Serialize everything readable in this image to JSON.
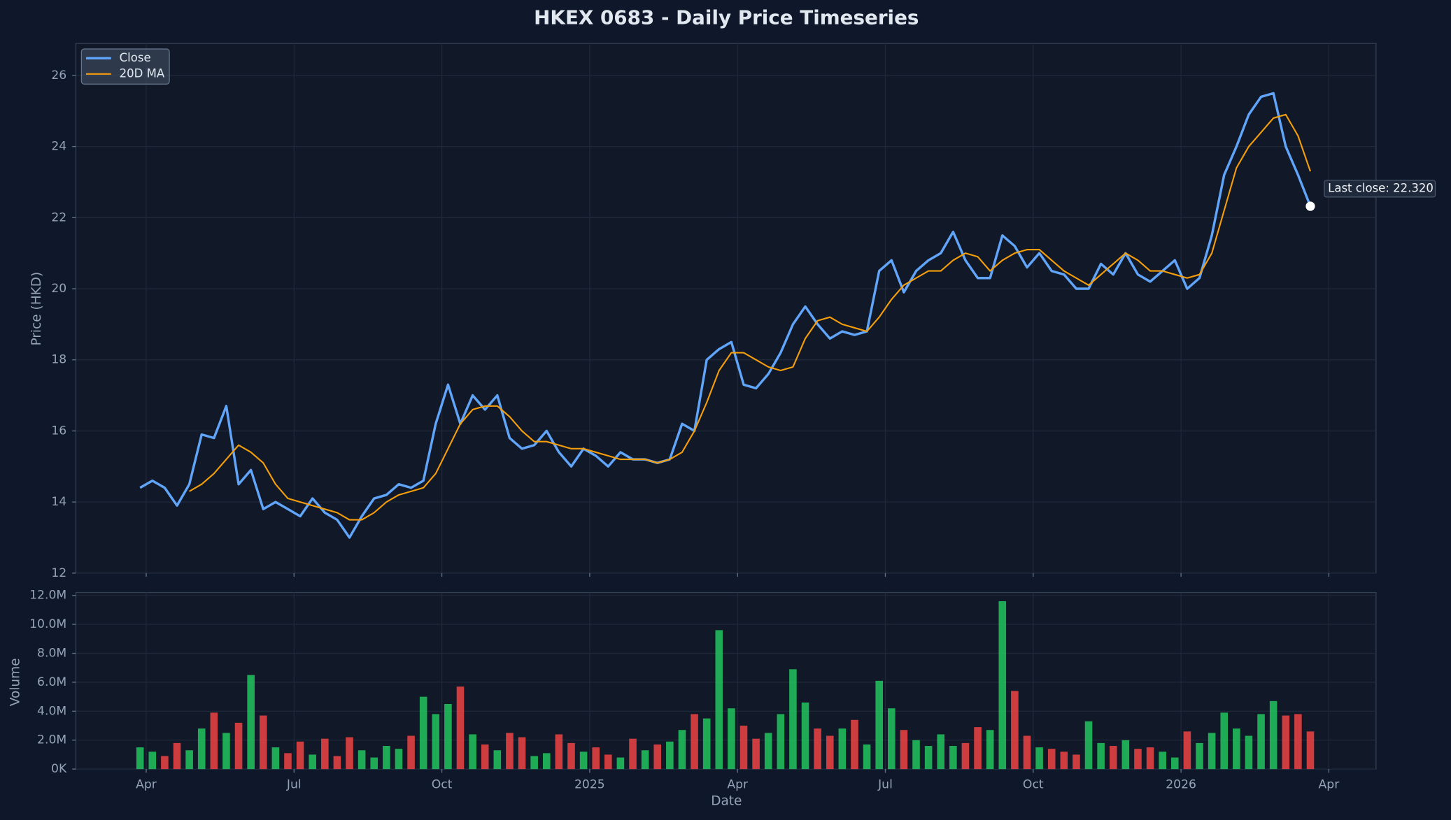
{
  "chart_data": [
    {
      "type": "line",
      "title": "HKEX 0683 - Daily Price Timeseries",
      "y_label": "Price (HKD)",
      "x": [
        "2024-03",
        "2024-03",
        "2024-03",
        "2024-03",
        "2024-04",
        "2024-04",
        "2024-04",
        "2024-04",
        "2024-05",
        "2024-05",
        "2024-05",
        "2024-05",
        "2024-06",
        "2024-06",
        "2024-06",
        "2024-06",
        "2024-07",
        "2024-07",
        "2024-07",
        "2024-07",
        "2024-08",
        "2024-08",
        "2024-08",
        "2024-08",
        "2024-09",
        "2024-09",
        "2024-09",
        "2024-09",
        "2024-10",
        "2024-10",
        "2024-10",
        "2024-10",
        "2024-11",
        "2024-11",
        "2024-11",
        "2024-11",
        "2024-12",
        "2024-12",
        "2024-12",
        "2024-12",
        "2025-01",
        "2025-01",
        "2025-01",
        "2025-01",
        "2025-02",
        "2025-02",
        "2025-02",
        "2025-02",
        "2025-03",
        "2025-03",
        "2025-03",
        "2025-03",
        "2025-04",
        "2025-04",
        "2025-04",
        "2025-04",
        "2025-05",
        "2025-05",
        "2025-05",
        "2025-05",
        "2025-06",
        "2025-06",
        "2025-06",
        "2025-06",
        "2025-07",
        "2025-07",
        "2025-07",
        "2025-07",
        "2025-08",
        "2025-08",
        "2025-08",
        "2025-08",
        "2025-09",
        "2025-09",
        "2025-09",
        "2025-09",
        "2025-10",
        "2025-10",
        "2025-10",
        "2025-10",
        "2025-11",
        "2025-11",
        "2025-11",
        "2025-11",
        "2025-12",
        "2025-12",
        "2025-12",
        "2025-12",
        "2026-01",
        "2026-01",
        "2026-01",
        "2026-01",
        "2026-02",
        "2026-02",
        "2026-02",
        "2026-02",
        "2026-03",
        "2026-03",
        "2026-03",
        "2026-03"
      ],
      "series": [
        {
          "name": "Close",
          "color": "#60a5fa",
          "values": [
            null,
            null,
            null,
            14.4,
            14.6,
            14.4,
            13.9,
            14.5,
            15.9,
            15.8,
            16.7,
            14.5,
            14.9,
            13.8,
            14.0,
            13.8,
            13.6,
            14.1,
            13.7,
            13.5,
            13.0,
            13.6,
            14.1,
            14.2,
            14.5,
            14.4,
            14.6,
            16.2,
            17.3,
            16.2,
            17.0,
            16.6,
            17.0,
            15.8,
            15.5,
            15.6,
            16.0,
            15.4,
            15.0,
            15.5,
            15.3,
            15.0,
            15.4,
            15.2,
            15.2,
            15.1,
            15.2,
            16.2,
            16.0,
            18.0,
            18.3,
            18.5,
            17.3,
            17.2,
            17.6,
            18.2,
            19.0,
            19.5,
            19.0,
            18.6,
            18.8,
            18.7,
            18.8,
            20.5,
            20.8,
            19.9,
            20.5,
            20.8,
            21.0,
            21.6,
            20.8,
            20.3,
            20.3,
            21.5,
            21.2,
            20.6,
            21.0,
            20.5,
            20.4,
            20.0,
            20.0,
            20.7,
            20.4,
            21.0,
            20.4,
            20.2,
            20.5,
            20.8,
            20.0,
            20.3,
            21.5,
            23.2,
            24.0,
            24.9,
            25.4,
            25.5,
            24.0,
            23.2,
            22.32,
            null
          ]
        },
        {
          "name": "20D MA",
          "color": "#f59e0b",
          "values": [
            null,
            null,
            null,
            null,
            null,
            null,
            null,
            14.3,
            14.5,
            14.8,
            15.2,
            15.6,
            15.4,
            15.1,
            14.5,
            14.1,
            14.0,
            13.9,
            13.8,
            13.7,
            13.5,
            13.5,
            13.7,
            14.0,
            14.2,
            14.3,
            14.4,
            14.8,
            15.5,
            16.2,
            16.6,
            16.7,
            16.7,
            16.4,
            16.0,
            15.7,
            15.7,
            15.6,
            15.5,
            15.5,
            15.4,
            15.3,
            15.2,
            15.2,
            15.2,
            15.1,
            15.2,
            15.4,
            16.0,
            16.8,
            17.7,
            18.2,
            18.2,
            18.0,
            17.8,
            17.7,
            17.8,
            18.6,
            19.1,
            19.2,
            19.0,
            18.9,
            18.8,
            19.2,
            19.7,
            20.1,
            20.3,
            20.5,
            20.5,
            20.8,
            21.0,
            20.9,
            20.5,
            20.8,
            21.0,
            21.1,
            21.1,
            20.8,
            20.5,
            20.3,
            20.1,
            20.4,
            20.7,
            21.0,
            20.8,
            20.5,
            20.5,
            20.4,
            20.3,
            20.4,
            21.0,
            22.2,
            23.4,
            24.0,
            24.4,
            24.8,
            24.9,
            24.3,
            23.3,
            null
          ]
        }
      ],
      "annotation": "Last close: 22.320",
      "ylim": [
        12,
        26.9
      ],
      "yticks": [
        12,
        14,
        16,
        18,
        20,
        22,
        24,
        26
      ],
      "grid": true,
      "legend": "upper left"
    },
    {
      "type": "bar",
      "y_label": "Volume",
      "x_label": "Date",
      "x": [
        "2024-03",
        "2024-03",
        "2024-03",
        "2024-03",
        "2024-04",
        "2024-04",
        "2024-04",
        "2024-04",
        "2024-05",
        "2024-05",
        "2024-05",
        "2024-05",
        "2024-06",
        "2024-06",
        "2024-06",
        "2024-06",
        "2024-07",
        "2024-07",
        "2024-07",
        "2024-07",
        "2024-08",
        "2024-08",
        "2024-08",
        "2024-08",
        "2024-09",
        "2024-09",
        "2024-09",
        "2024-09",
        "2024-10",
        "2024-10",
        "2024-10",
        "2024-10",
        "2024-11",
        "2024-11",
        "2024-11",
        "2024-11",
        "2024-12",
        "2024-12",
        "2024-12",
        "2024-12",
        "2025-01",
        "2025-01",
        "2025-01",
        "2025-01",
        "2025-02",
        "2025-02",
        "2025-02",
        "2025-02",
        "2025-03",
        "2025-03",
        "2025-03",
        "2025-03",
        "2025-04",
        "2025-04",
        "2025-04",
        "2025-04",
        "2025-05",
        "2025-05",
        "2025-05",
        "2025-05",
        "2025-06",
        "2025-06",
        "2025-06",
        "2025-06",
        "2025-07",
        "2025-07",
        "2025-07",
        "2025-07",
        "2025-08",
        "2025-08",
        "2025-08",
        "2025-08",
        "2025-09",
        "2025-09",
        "2025-09",
        "2025-09",
        "2025-10",
        "2025-10",
        "2025-10",
        "2025-10",
        "2025-11",
        "2025-11",
        "2025-11",
        "2025-11",
        "2025-12",
        "2025-12",
        "2025-12",
        "2025-12",
        "2026-01",
        "2026-01",
        "2026-01",
        "2026-01",
        "2026-02",
        "2026-02",
        "2026-02",
        "2026-02",
        "2026-03",
        "2026-03",
        "2026-03",
        "2026-03"
      ],
      "values": [
        null,
        null,
        null,
        1500000,
        1200000,
        900000,
        1800000,
        1300000,
        2800000,
        3900000,
        2500000,
        3200000,
        6500000,
        3700000,
        1500000,
        1100000,
        1900000,
        1000000,
        2100000,
        900000,
        2200000,
        1300000,
        800000,
        1600000,
        1400000,
        2300000,
        5000000,
        3800000,
        4500000,
        5700000,
        2400000,
        1700000,
        1300000,
        2500000,
        2200000,
        900000,
        1100000,
        2400000,
        1800000,
        1200000,
        1500000,
        1000000,
        800000,
        2100000,
        1300000,
        1700000,
        1900000,
        2700000,
        3800000,
        3500000,
        9600000,
        4200000,
        3000000,
        2100000,
        2500000,
        3800000,
        6900000,
        4600000,
        2800000,
        2300000,
        2800000,
        3400000,
        1700000,
        6100000,
        4200000,
        2700000,
        2000000,
        1600000,
        2400000,
        1600000,
        1800000,
        2900000,
        2700000,
        11600000,
        5400000,
        2300000,
        1500000,
        1400000,
        1200000,
        1000000,
        3300000,
        1800000,
        1600000,
        2000000,
        1400000,
        1500000,
        1200000,
        800000,
        2600000,
        1800000,
        2500000,
        3900000,
        2800000,
        2300000,
        3800000,
        4700000,
        3700000,
        3800000,
        2600000,
        null
      ],
      "up_color": "#22c55e",
      "down_color": "#ef4444",
      "ylim": [
        0,
        12200000
      ],
      "yticks": [
        {
          "value": 0,
          "label": "0K"
        },
        {
          "value": 2000000,
          "label": "2.0M"
        },
        {
          "value": 4000000,
          "label": "4.0M"
        },
        {
          "value": 6000000,
          "label": "6.0M"
        },
        {
          "value": 8000000,
          "label": "8.0M"
        },
        {
          "value": 10000000,
          "label": "10.0M"
        },
        {
          "value": 12000000,
          "label": "12.0M"
        }
      ],
      "xticks": [
        {
          "value": "2024-04",
          "label": "Apr"
        },
        {
          "value": "2024-07",
          "label": "Jul"
        },
        {
          "value": "2024-10",
          "label": "Oct"
        },
        {
          "value": "2025-01",
          "label": "2025"
        },
        {
          "value": "2025-04",
          "label": "Apr"
        },
        {
          "value": "2025-07",
          "label": "Jul"
        },
        {
          "value": "2025-10",
          "label": "Oct"
        },
        {
          "value": "2026-01",
          "label": "2026"
        },
        {
          "value": "2026-04",
          "label": "Apr"
        }
      ],
      "grid": true
    }
  ]
}
